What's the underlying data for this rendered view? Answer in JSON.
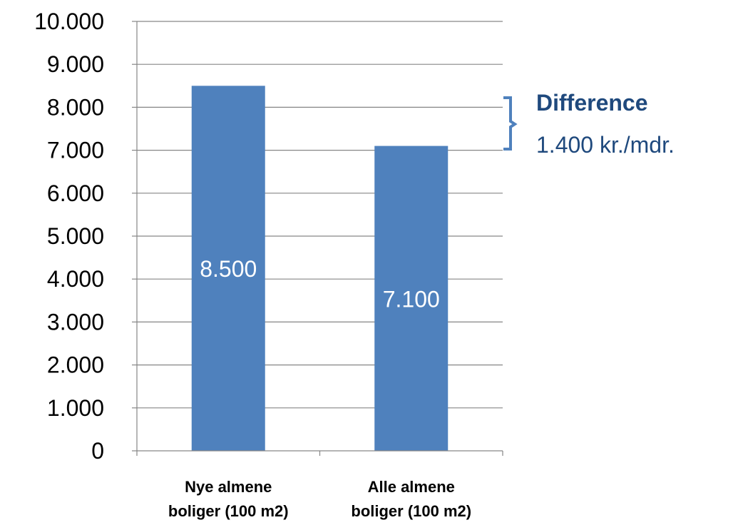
{
  "chart_data": {
    "type": "bar",
    "categories": [
      "Nye almene boliger (100 m2)",
      "Alle almene boliger (100 m2)"
    ],
    "category_lines": [
      [
        "Nye almene",
        "boliger (100 m2)"
      ],
      [
        "Alle almene",
        "boliger (100 m2)"
      ]
    ],
    "values": [
      8500,
      7100
    ],
    "data_labels": [
      "8.500",
      "7.100"
    ],
    "ylim": [
      0,
      10000
    ],
    "yticks": [
      0,
      1000,
      2000,
      3000,
      4000,
      5000,
      6000,
      7000,
      8000,
      9000,
      10000
    ],
    "ytick_labels": [
      "0",
      "1.000",
      "2.000",
      "3.000",
      "4.000",
      "5.000",
      "6.000",
      "7.000",
      "8.000",
      "9.000",
      "10.000"
    ],
    "grid": true,
    "legend": "none",
    "title": "",
    "xlabel": "",
    "ylabel": "",
    "colors": {
      "bar": "#4F81BD",
      "axis": "#868686",
      "grid": "#868686",
      "tick_text": "#000000",
      "data_label_text": "#ffffff",
      "annotation": "#1F497D"
    },
    "annotation": {
      "title": "Difference",
      "text": "1.400 kr./mdr."
    }
  }
}
